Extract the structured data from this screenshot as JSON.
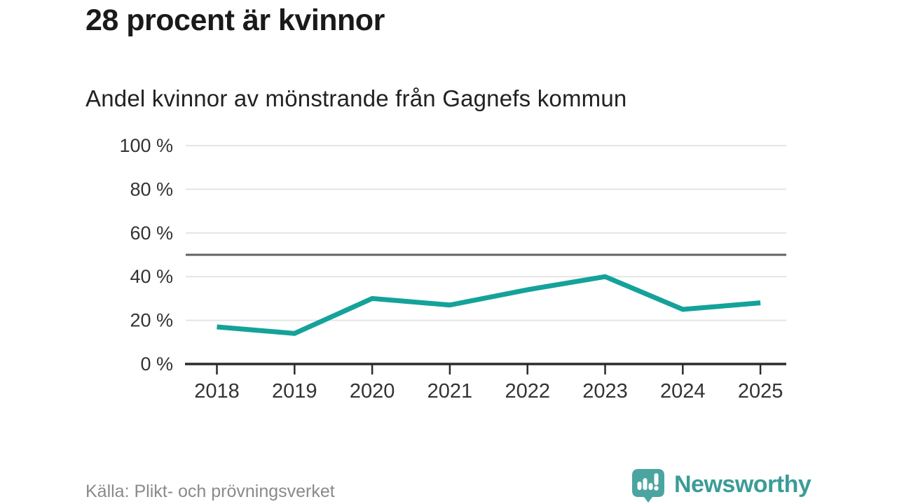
{
  "header": {
    "title": "28 procent är kvinnor",
    "subtitle": "Andel kvinnor av mönstrande från Gagnefs kommun"
  },
  "chart_data": {
    "type": "line",
    "title": "28 procent är kvinnor",
    "subtitle": "Andel kvinnor av mönstrande från Gagnefs kommun",
    "categories": [
      "2018",
      "2019",
      "2020",
      "2021",
      "2022",
      "2023",
      "2024",
      "2025"
    ],
    "series": [
      {
        "name": "Andel kvinnor av mönstrande",
        "values": [
          17,
          14,
          30,
          27,
          34,
          40,
          25,
          28
        ]
      }
    ],
    "unit": "%",
    "ylim": [
      0,
      100
    ],
    "y_ticks": [
      0,
      20,
      40,
      60,
      80,
      100
    ],
    "y_tick_suffix": " %",
    "reference_line": 50,
    "grid": true,
    "legend": "none",
    "colors": {
      "line": "#14a29a",
      "reference_line": "#5f6365",
      "axis": "#2b2b2b",
      "grid": "#e4e4e4",
      "labels": "#333333"
    }
  },
  "footer": {
    "source": "Källa: Plikt- och prövningsverket",
    "brand": "Newsworthy"
  },
  "logo": {
    "name": "newsworthy-logo",
    "icon": "speech-bubble-bar-chart-exclamation",
    "icon_color": "#4aa5a1",
    "text_color": "#3b9c97"
  }
}
